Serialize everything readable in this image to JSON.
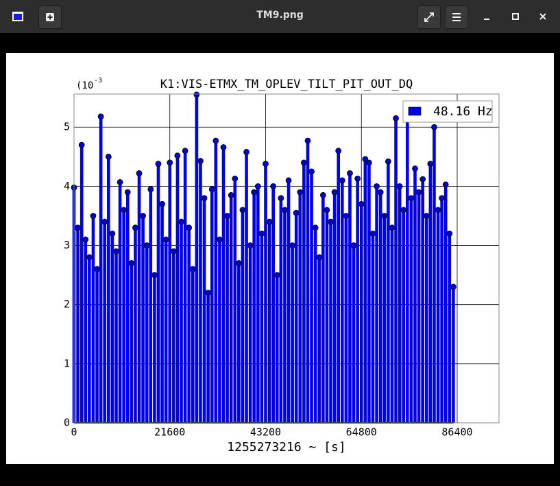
{
  "window": {
    "title": "TM9.png"
  },
  "chart_data": {
    "type": "stem",
    "title": "K1:VIS-ETMX_TM_OPLEV_TILT_PIT_OUT_DQ",
    "multiplier": {
      "base": "(10",
      "exponent": "-3"
    },
    "xlabel": "1255273216 ~ [s]",
    "legend": "upper right",
    "grid": true,
    "xlim": [
      0,
      95830
    ],
    "ylim": [
      0,
      5.56
    ],
    "xticks": [
      0,
      21600,
      43200,
      64800,
      86400
    ],
    "yticks": [
      0,
      1,
      2,
      3,
      4,
      5
    ],
    "x": [
      0,
      864,
      1728,
      2592,
      3456,
      4320,
      5184,
      6048,
      6912,
      7776,
      8640,
      9504,
      10368,
      11232,
      12096,
      12960,
      13824,
      14688,
      15552,
      16416,
      17280,
      18144,
      19008,
      19872,
      20736,
      21600,
      22464,
      23328,
      24192,
      25056,
      25920,
      26784,
      27648,
      28512,
      29376,
      30240,
      31104,
      31968,
      32832,
      33696,
      34560,
      35424,
      36288,
      37152,
      38016,
      38880,
      39744,
      40608,
      41472,
      42336,
      43200,
      44064,
      44928,
      45792,
      46656,
      47520,
      48384,
      49248,
      50112,
      50976,
      51840,
      52704,
      53568,
      54432,
      55296,
      56160,
      57024,
      57888,
      58752,
      59616,
      60480,
      61344,
      62208,
      63072,
      63936,
      64800,
      65664,
      66528,
      67392,
      68256,
      69120,
      69984,
      70848,
      71712,
      72576,
      73440,
      74304,
      75168,
      76032,
      76896,
      77760,
      78624,
      79488,
      80352,
      81216,
      82080,
      82944,
      83808,
      84672,
      85536
    ],
    "series": [
      {
        "name": "48.16 Hz",
        "color": "#0000ee",
        "values": [
          3.98,
          3.3,
          4.7,
          3.1,
          2.8,
          3.5,
          2.6,
          5.18,
          3.4,
          4.5,
          3.2,
          2.9,
          4.07,
          3.6,
          3.9,
          2.7,
          3.3,
          4.22,
          3.5,
          3.0,
          3.95,
          2.5,
          4.38,
          3.7,
          3.1,
          4.4,
          2.9,
          4.52,
          3.4,
          4.6,
          3.3,
          2.6,
          5.55,
          4.43,
          3.8,
          2.2,
          3.95,
          4.77,
          3.1,
          4.66,
          3.5,
          3.85,
          4.13,
          2.7,
          3.6,
          4.58,
          3.0,
          3.9,
          4.0,
          3.2,
          4.38,
          3.4,
          4.0,
          2.5,
          3.8,
          3.6,
          4.1,
          3.0,
          3.55,
          3.9,
          4.4,
          4.77,
          4.25,
          3.3,
          2.8,
          3.85,
          3.6,
          3.4,
          3.9,
          4.6,
          4.1,
          3.5,
          4.22,
          3.0,
          4.13,
          3.7,
          4.46,
          4.4,
          3.2,
          4.0,
          3.9,
          3.5,
          4.42,
          3.3,
          5.15,
          4.0,
          3.6,
          5.12,
          3.8,
          4.3,
          3.9,
          4.12,
          3.5,
          4.38,
          5.0,
          3.6,
          3.8,
          4.03,
          3.2,
          2.3
        ]
      }
    ]
  }
}
